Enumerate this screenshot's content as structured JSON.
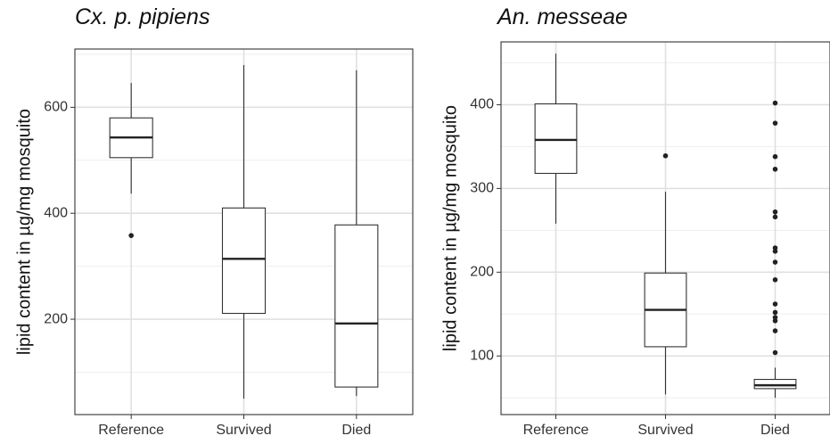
{
  "chart_data": [
    {
      "type": "boxplot",
      "title": "Cx. p. pipiens",
      "xlabel": "",
      "ylabel": "lipid content in µg/mg mosquito",
      "categories": [
        "Reference",
        "Survived",
        "Died"
      ],
      "ylim": [
        20,
        710
      ],
      "yticks": [
        200,
        400,
        600
      ],
      "grid": true,
      "boxes": [
        {
          "category": "Reference",
          "whisker_low": 437,
          "q1": 505,
          "median": 543,
          "q3": 580,
          "whisker_high": 646,
          "outliers": [
            358
          ]
        },
        {
          "category": "Survived",
          "whisker_low": 50,
          "q1": 211,
          "median": 314,
          "q3": 410,
          "whisker_high": 680,
          "outliers": []
        },
        {
          "category": "Died",
          "whisker_low": 55,
          "q1": 72,
          "median": 192,
          "q3": 378,
          "whisker_high": 670,
          "outliers": []
        }
      ]
    },
    {
      "type": "boxplot",
      "title": "An. messeae",
      "xlabel": "",
      "ylabel": "lipid content in µg/mg mosquito",
      "categories": [
        "Reference",
        "Survived",
        "Died"
      ],
      "ylim": [
        30,
        475
      ],
      "yticks": [
        100,
        200,
        300,
        400
      ],
      "grid": true,
      "boxes": [
        {
          "category": "Reference",
          "whisker_low": 258,
          "q1": 318,
          "median": 358,
          "q3": 401,
          "whisker_high": 461,
          "outliers": []
        },
        {
          "category": "Survived",
          "whisker_low": 54,
          "q1": 111,
          "median": 155,
          "q3": 199,
          "whisker_high": 296,
          "outliers": [
            339
          ]
        },
        {
          "category": "Died",
          "whisker_low": 50,
          "q1": 61,
          "median": 65,
          "q3": 72,
          "whisker_high": 86,
          "outliers": [
            104,
            130,
            142,
            146,
            152,
            162,
            191,
            212,
            225,
            229,
            266,
            272,
            323,
            338,
            378,
            402
          ]
        }
      ]
    }
  ]
}
